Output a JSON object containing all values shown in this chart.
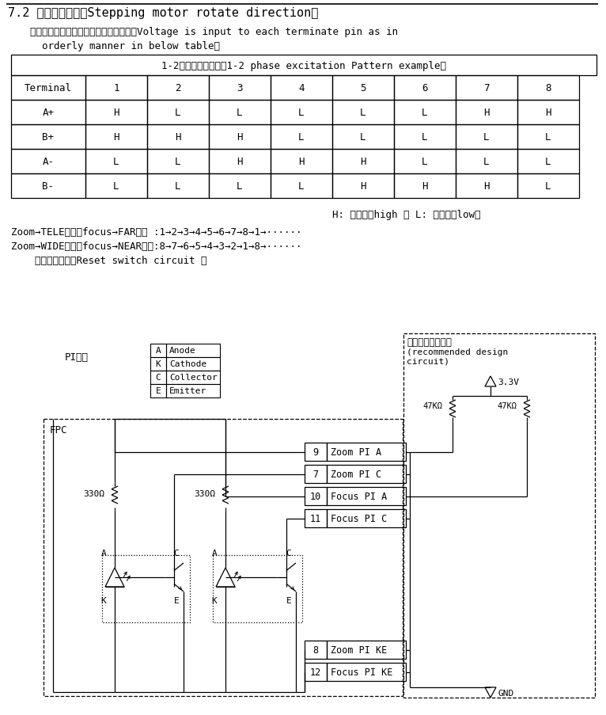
{
  "title": "7.2 步进电机转向（Stepping motor rotate direction）",
  "subtitle1": "电压输入到每个端子的顺序方式见下表（Voltage is input to each terminate pin as in",
  "subtitle2": "  orderly manner in below table）",
  "table_title": "1-2相励磁模式示例（1-2 phase excitation Pattern example）",
  "table_headers": [
    "Terminal",
    "1",
    "2",
    "3",
    "4",
    "5",
    "6",
    "7",
    "8"
  ],
  "table_data": [
    [
      "A+",
      "H",
      "L",
      "L",
      "L",
      "L",
      "L",
      "H",
      "H"
    ],
    [
      "B+",
      "H",
      "H",
      "H",
      "L",
      "L",
      "L",
      "L",
      "L"
    ],
    [
      "A-",
      "L",
      "L",
      "H",
      "H",
      "H",
      "L",
      "L",
      "L"
    ],
    [
      "B-",
      "L",
      "L",
      "L",
      "L",
      "H",
      "H",
      "H",
      "L"
    ]
  ],
  "note": "H: 高电位（high ） L: 低电位（low）",
  "line1": "Zoom→TELE方向，focus→FAR方向 :1→2→3→4→5→6→7→8→1→······",
  "line2": "Zoom→WIDE方向，focus→NEAR方向:8→7→6→5→4→3→2→1→8→······",
  "line3": "    复位开关电路（Reset switch circuit ）",
  "pi_label": "PI回路",
  "fpc_label": "FPC",
  "rec1": "推荐基板设计回路",
  "rec2": "(recommended design",
  "rec3": "circuit)",
  "voltage": "3.3V",
  "gnd_label": "GND",
  "res330": "330Ω",
  "res47k": "47KΩ",
  "legend": [
    [
      "A",
      "Anode"
    ],
    [
      "K",
      "Cathode"
    ],
    [
      "C",
      "Collector"
    ],
    [
      "E",
      "Emitter"
    ]
  ],
  "upper_pins": [
    [
      "9",
      "Zoom PI A"
    ],
    [
      "7",
      "Zoom PI C"
    ],
    [
      "10",
      "Focus PI A"
    ],
    [
      "11",
      "Focus PI C"
    ]
  ],
  "lower_pins": [
    [
      "8",
      "Zoom PI KE"
    ],
    [
      "12",
      "Focus PI KE"
    ]
  ]
}
